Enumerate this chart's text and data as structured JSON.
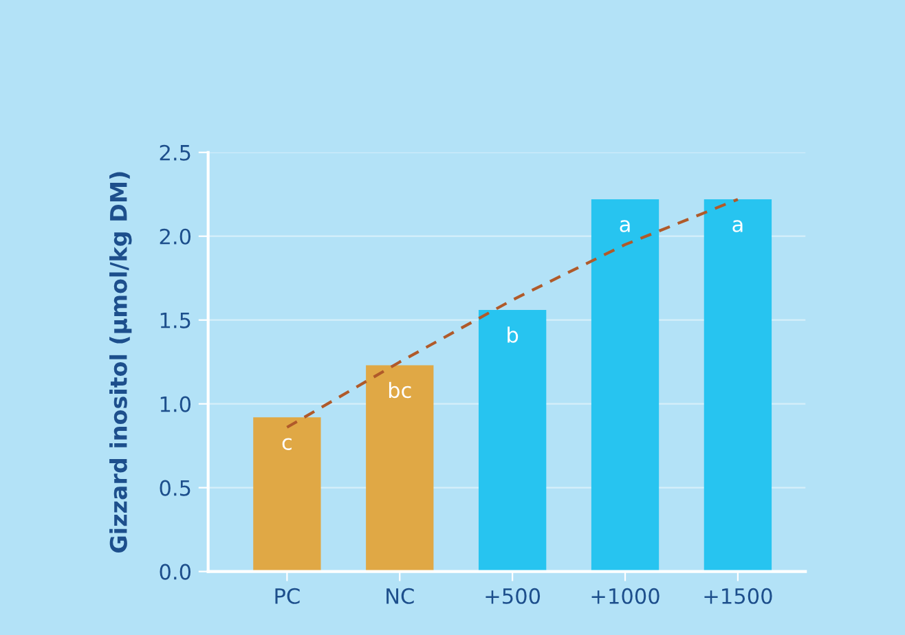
{
  "chart_data": {
    "type": "bar",
    "ylabel": "Gizzard inositol (µmol/kg DM)",
    "categories": [
      "PC",
      "NC",
      "+500",
      "+1000",
      "+1500"
    ],
    "series": [
      {
        "values": [
          0.92,
          1.23,
          1.56,
          2.22,
          2.22
        ],
        "colors": [
          "#e0a845",
          "#e0a845",
          "#27c4f0",
          "#27c4f0",
          "#27c4f0"
        ]
      },
      {
        "type": "line",
        "line_style": "dashed",
        "color": "#b05a2a",
        "values": [
          0.86,
          1.25,
          1.62,
          1.95,
          2.22
        ]
      }
    ],
    "annotations": [
      "c",
      "bc",
      "b",
      "a",
      "a"
    ],
    "ylim": [
      0,
      2.5
    ],
    "yticks": [
      {
        "value": 0,
        "label": "0.0"
      },
      {
        "value": 0.5,
        "label": "0.5"
      },
      {
        "value": 1,
        "label": "1.0"
      },
      {
        "value": 1.5,
        "label": "1.5"
      },
      {
        "value": 2,
        "label": "2.0"
      },
      {
        "value": 2.5,
        "label": "2.5"
      }
    ],
    "grid": "y"
  }
}
